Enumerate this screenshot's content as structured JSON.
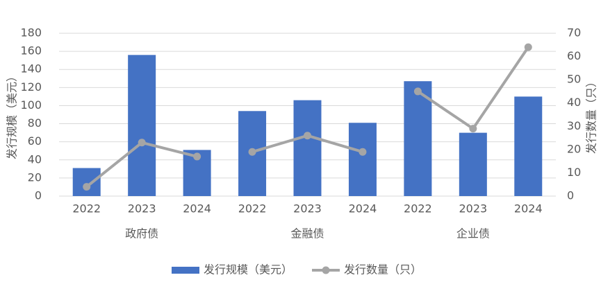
{
  "chart_data": {
    "type": "bar-line",
    "categories": [
      "2022",
      "2023",
      "2024",
      "2022",
      "2023",
      "2024",
      "2022",
      "2023",
      "2024"
    ],
    "groups": [
      "政府债",
      "金融债",
      "企业债"
    ],
    "y_label": "发行规模（美元）",
    "y2_label": "发行数量（只）",
    "series": [
      {
        "name": "发行规模（美元）",
        "type": "bar",
        "color": "#4472c4",
        "values": [
          31,
          156,
          51,
          94,
          106,
          81,
          127,
          70,
          110
        ]
      },
      {
        "name": "发行数量（只）",
        "type": "line",
        "axis": "y2",
        "color": "#a5a5a5",
        "values": [
          4,
          23,
          17,
          19,
          26,
          19,
          45,
          29,
          64
        ]
      }
    ],
    "ylim": [
      0,
      180
    ],
    "yticks": [
      0,
      20,
      40,
      60,
      80,
      100,
      120,
      140,
      160,
      180
    ],
    "y2lim": [
      0,
      70
    ],
    "y2ticks": [
      0,
      10,
      20,
      30,
      40,
      50,
      60,
      70
    ],
    "grid": true,
    "legend": "bottom"
  }
}
